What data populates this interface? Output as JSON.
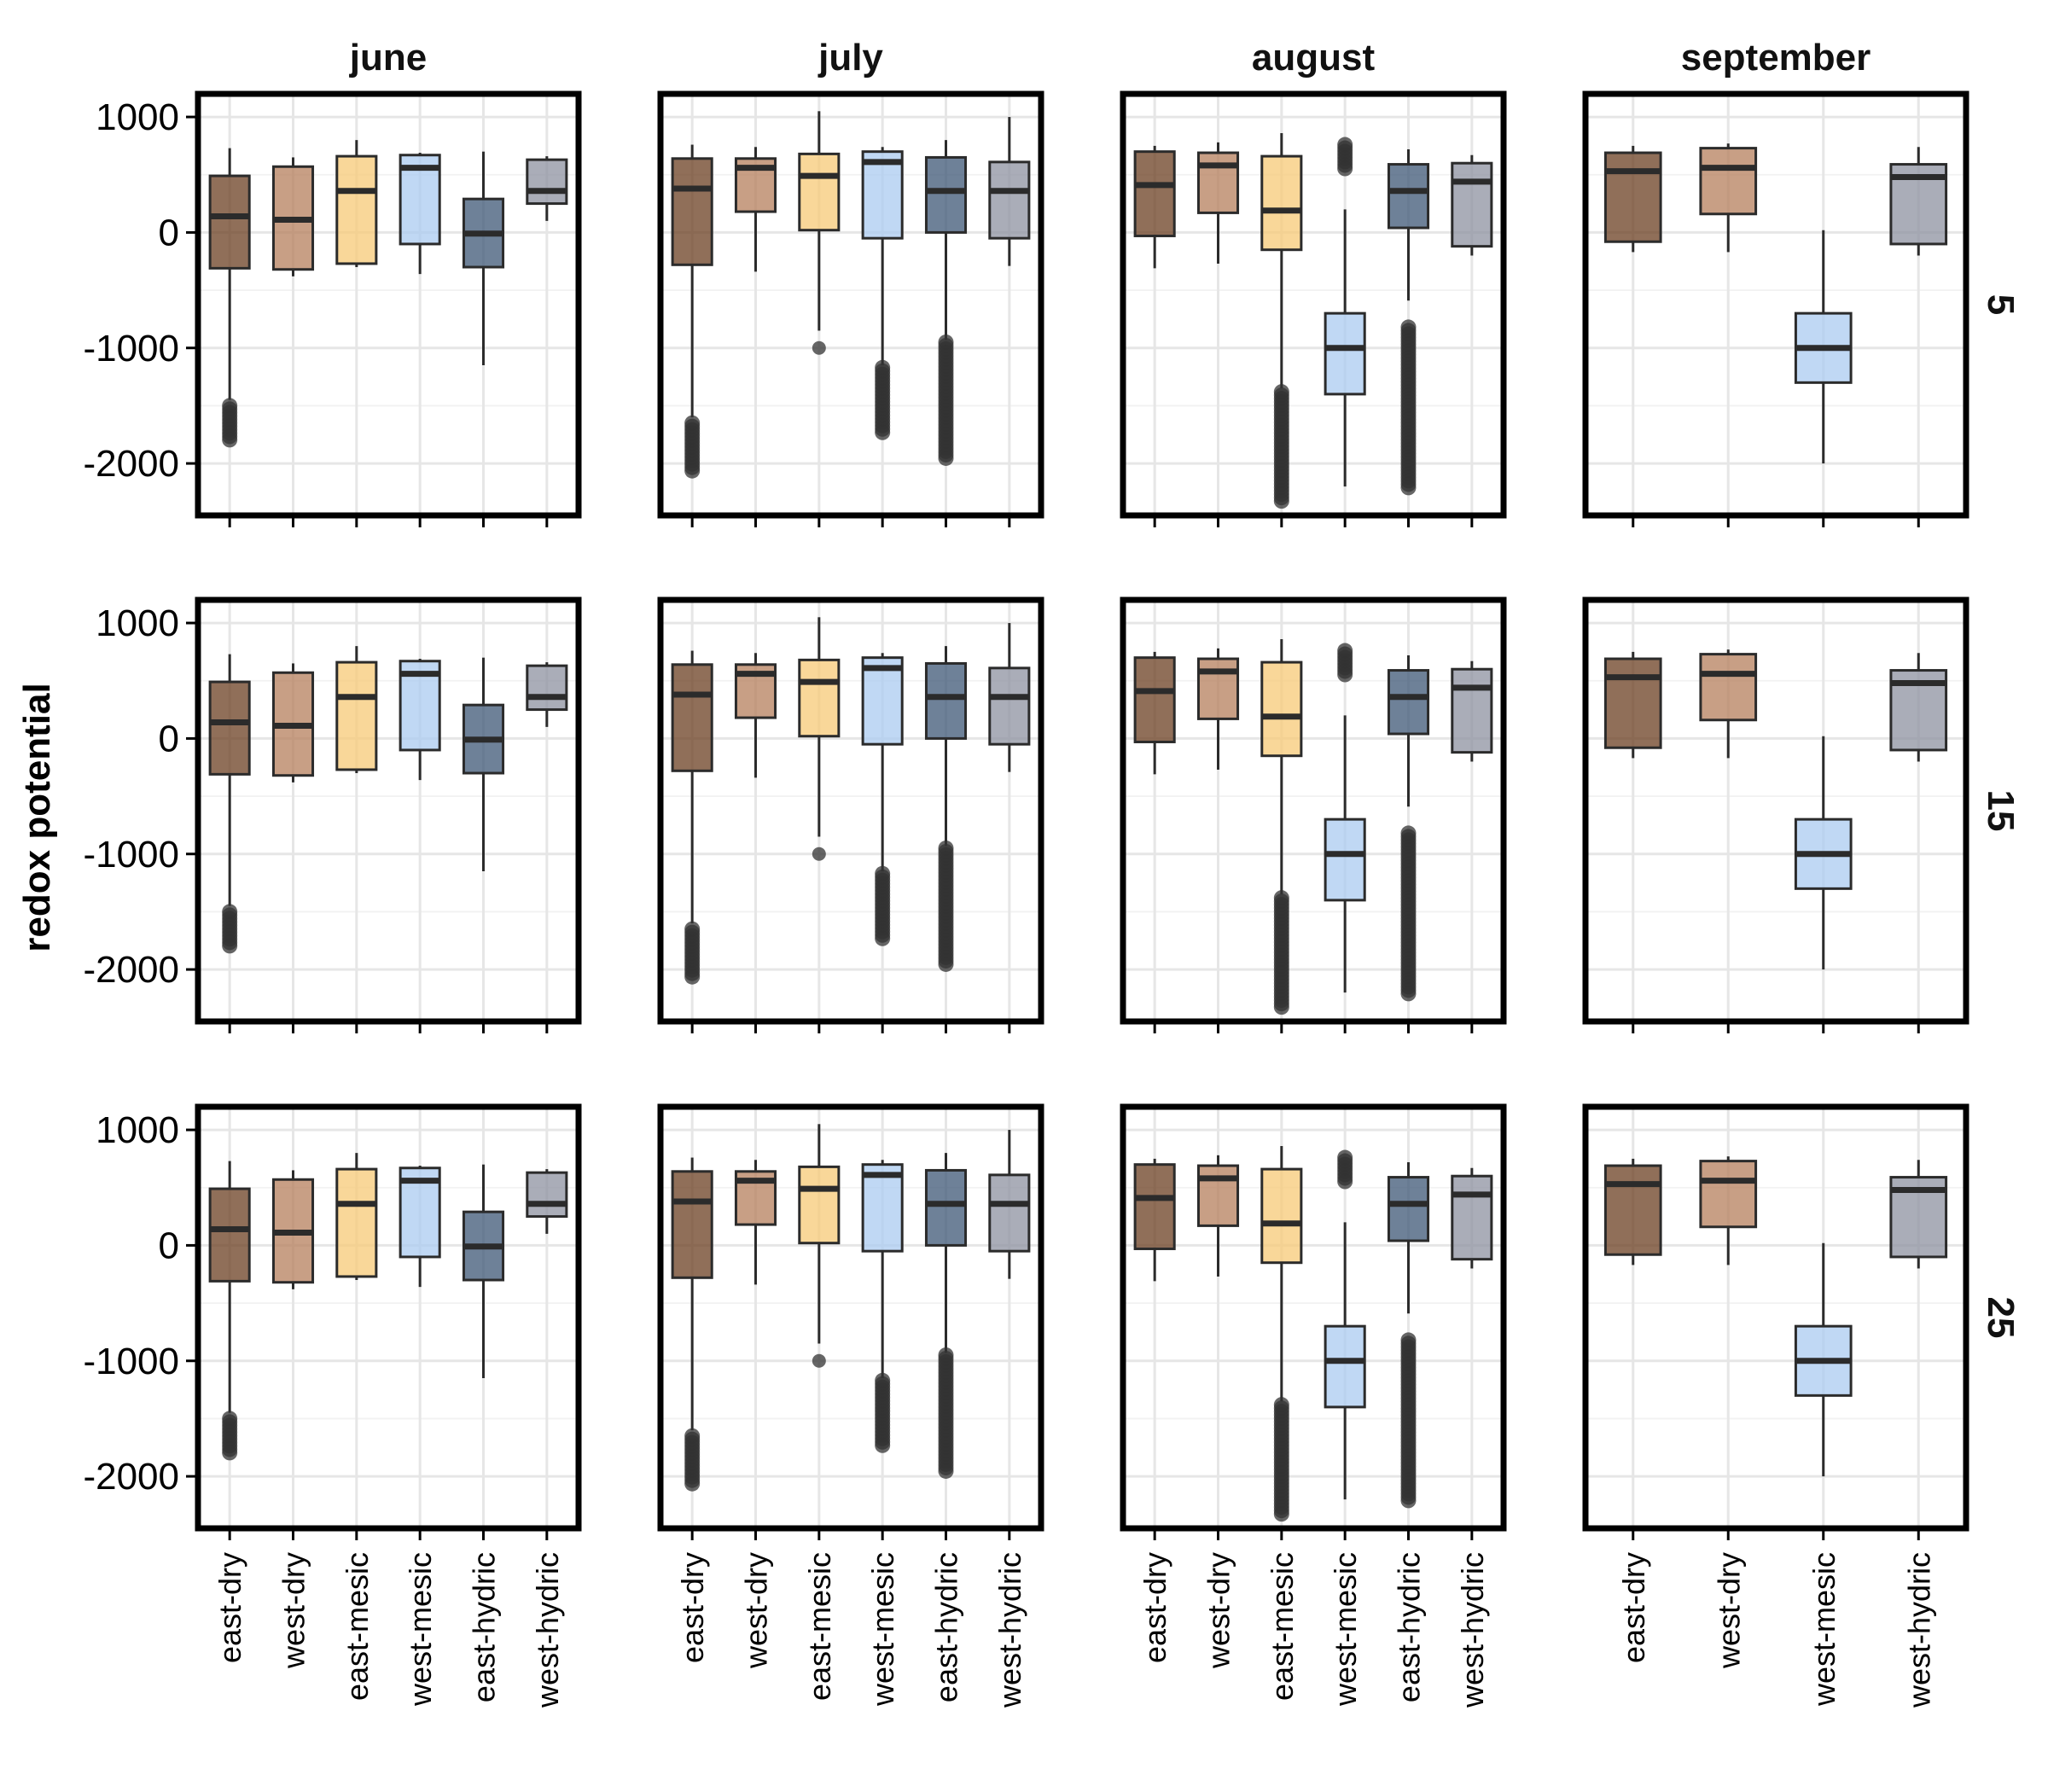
{
  "chart_data": {
    "type": "boxplot",
    "ylabel": "redox potential",
    "xlabel": "",
    "ylim": [
      -2450,
      1200
    ],
    "yticks": [
      1000,
      0,
      -1000,
      -2000
    ],
    "y_tick_labels": [
      "1000",
      "0",
      "-1000",
      "-2000"
    ],
    "grid": true,
    "colors": {
      "east-dry": "#6b3f22",
      "west-dry": "#b57f5c",
      "east-mesic": "#f7c977",
      "west-mesic": "#abcbf0",
      "east-hydric": "#3d5775",
      "west-hydric": "#8d92a0"
    },
    "facet_columns": [
      "june",
      "july",
      "august",
      "september"
    ],
    "facet_rows": [
      "5",
      "15",
      "25"
    ],
    "months": [
      {
        "name": "june",
        "categories": [
          "east-dry",
          "west-dry",
          "east-mesic",
          "west-mesic",
          "east-hydric",
          "west-hydric"
        ],
        "rows": [
          {
            "depth": "5",
            "boxes": [
              {
                "category": "east-dry",
                "whisker_low": -1450,
                "q1": -310,
                "median": 140,
                "q3": 490,
                "whisker_high": 730,
                "outliers_low": -1500,
                "outliers_high": -1800,
                "outliers_high_value": null
              },
              {
                "category": "west-dry",
                "whisker_low": -380,
                "q1": -320,
                "median": 110,
                "q3": 570,
                "whisker_high": 650
              },
              {
                "category": "east-mesic",
                "whisker_low": -300,
                "q1": -270,
                "median": 360,
                "q3": 660,
                "whisker_high": 800
              },
              {
                "category": "west-mesic",
                "whisker_low": -360,
                "q1": -100,
                "median": 560,
                "q3": 670,
                "whisker_high": 690
              },
              {
                "category": "east-hydric",
                "whisker_low": -1150,
                "q1": -300,
                "median": -10,
                "q3": 290,
                "whisker_high": 700
              },
              {
                "category": "west-hydric",
                "whisker_low": 100,
                "q1": 250,
                "median": 360,
                "q3": 630,
                "whisker_high": 660
              }
            ]
          },
          {
            "depth": "15",
            "boxes": [
              {
                "category": "east-dry",
                "whisker_low": -1450,
                "q1": -310,
                "median": 140,
                "q3": 490,
                "whisker_high": 730,
                "outliers_low": -1500,
                "outliers_high": -1800
              },
              {
                "category": "west-dry",
                "whisker_low": -380,
                "q1": -320,
                "median": 110,
                "q3": 570,
                "whisker_high": 650
              },
              {
                "category": "east-mesic",
                "whisker_low": -300,
                "q1": -270,
                "median": 360,
                "q3": 660,
                "whisker_high": 800
              },
              {
                "category": "west-mesic",
                "whisker_low": -360,
                "q1": -100,
                "median": 560,
                "q3": 670,
                "whisker_high": 690
              },
              {
                "category": "east-hydric",
                "whisker_low": -1150,
                "q1": -300,
                "median": -10,
                "q3": 290,
                "whisker_high": 700
              },
              {
                "category": "west-hydric",
                "whisker_low": 100,
                "q1": 250,
                "median": 360,
                "q3": 630,
                "whisker_high": 660
              }
            ]
          },
          {
            "depth": "25",
            "boxes": [
              {
                "category": "east-dry",
                "whisker_low": -1450,
                "q1": -310,
                "median": 140,
                "q3": 490,
                "whisker_high": 730,
                "outliers_low": -1500,
                "outliers_high": -1800
              },
              {
                "category": "west-dry",
                "whisker_low": -380,
                "q1": -320,
                "median": 110,
                "q3": 570,
                "whisker_high": 650
              },
              {
                "category": "east-mesic",
                "whisker_low": -300,
                "q1": -270,
                "median": 360,
                "q3": 660,
                "whisker_high": 800
              },
              {
                "category": "west-mesic",
                "whisker_low": -360,
                "q1": -100,
                "median": 560,
                "q3": 670,
                "whisker_high": 690
              },
              {
                "category": "east-hydric",
                "whisker_low": -1150,
                "q1": -300,
                "median": -10,
                "q3": 290,
                "whisker_high": 700
              },
              {
                "category": "west-hydric",
                "whisker_low": 100,
                "q1": 250,
                "median": 360,
                "q3": 630,
                "whisker_high": 660
              }
            ]
          }
        ]
      },
      {
        "name": "july",
        "categories": [
          "east-dry",
          "west-dry",
          "east-mesic",
          "west-mesic",
          "east-hydric",
          "west-hydric"
        ],
        "rows": [
          {
            "depth": "5",
            "boxes": [
              {
                "category": "east-dry",
                "whisker_low": -1600,
                "q1": -280,
                "median": 380,
                "q3": 640,
                "whisker_high": 760,
                "outliers_low": -1650,
                "outliers_high": -2080
              },
              {
                "category": "west-dry",
                "whisker_low": -340,
                "q1": 180,
                "median": 560,
                "q3": 640,
                "whisker_high": 740
              },
              {
                "category": "east-mesic",
                "whisker_low": -850,
                "q1": 20,
                "median": 490,
                "q3": 680,
                "whisker_high": 1050,
                "single_outlier": -1000
              },
              {
                "category": "west-mesic",
                "whisker_low": -1150,
                "q1": -50,
                "median": 610,
                "q3": 700,
                "whisker_high": 740,
                "outliers_low": -1170,
                "outliers_high": -1740
              },
              {
                "category": "east-hydric",
                "whisker_low": -930,
                "q1": 0,
                "median": 360,
                "q3": 650,
                "whisker_high": 800,
                "outliers_low": -950,
                "outliers_high": -1970
              },
              {
                "category": "west-hydric",
                "whisker_low": -290,
                "q1": -50,
                "median": 360,
                "q3": 610,
                "whisker_high": 1000
              }
            ]
          },
          {
            "depth": "15",
            "boxes": [
              {
                "category": "east-dry",
                "whisker_low": -1600,
                "q1": -280,
                "median": 380,
                "q3": 640,
                "whisker_high": 760,
                "outliers_low": -1650,
                "outliers_high": -2080
              },
              {
                "category": "west-dry",
                "whisker_low": -340,
                "q1": 180,
                "median": 560,
                "q3": 640,
                "whisker_high": 740
              },
              {
                "category": "east-mesic",
                "whisker_low": -850,
                "q1": 20,
                "median": 490,
                "q3": 680,
                "whisker_high": 1050,
                "single_outlier": -1000
              },
              {
                "category": "west-mesic",
                "whisker_low": -1150,
                "q1": -50,
                "median": 610,
                "q3": 700,
                "whisker_high": 740,
                "outliers_low": -1170,
                "outliers_high": -1740
              },
              {
                "category": "east-hydric",
                "whisker_low": -930,
                "q1": 0,
                "median": 360,
                "q3": 650,
                "whisker_high": 800,
                "outliers_low": -950,
                "outliers_high": -1970
              },
              {
                "category": "west-hydric",
                "whisker_low": -290,
                "q1": -50,
                "median": 360,
                "q3": 610,
                "whisker_high": 1000
              }
            ]
          },
          {
            "depth": "25",
            "boxes": [
              {
                "category": "east-dry",
                "whisker_low": -1600,
                "q1": -280,
                "median": 380,
                "q3": 640,
                "whisker_high": 760,
                "outliers_low": -1650,
                "outliers_high": -2080
              },
              {
                "category": "west-dry",
                "whisker_low": -340,
                "q1": 180,
                "median": 560,
                "q3": 640,
                "whisker_high": 740
              },
              {
                "category": "east-mesic",
                "whisker_low": -850,
                "q1": 20,
                "median": 490,
                "q3": 680,
                "whisker_high": 1050,
                "single_outlier": -1000
              },
              {
                "category": "west-mesic",
                "whisker_low": -1150,
                "q1": -50,
                "median": 610,
                "q3": 700,
                "whisker_high": 740,
                "outliers_low": -1170,
                "outliers_high": -1740
              },
              {
                "category": "east-hydric",
                "whisker_low": -930,
                "q1": 0,
                "median": 360,
                "q3": 650,
                "whisker_high": 800,
                "outliers_low": -950,
                "outliers_high": -1970
              },
              {
                "category": "west-hydric",
                "whisker_low": -290,
                "q1": -50,
                "median": 360,
                "q3": 610,
                "whisker_high": 1000
              }
            ]
          }
        ]
      },
      {
        "name": "august",
        "categories": [
          "east-dry",
          "west-dry",
          "east-mesic",
          "west-mesic",
          "east-hydric",
          "west-hydric"
        ],
        "rows": [
          {
            "depth": "5",
            "boxes": [
              {
                "category": "east-dry",
                "whisker_low": -310,
                "q1": -30,
                "median": 410,
                "q3": 700,
                "whisker_high": 750
              },
              {
                "category": "west-dry",
                "whisker_low": -270,
                "q1": 170,
                "median": 580,
                "q3": 690,
                "whisker_high": 780
              },
              {
                "category": "east-mesic",
                "whisker_low": -1350,
                "q1": -150,
                "median": 190,
                "q3": 660,
                "whisker_high": 860,
                "outliers_low": -1380,
                "outliers_high": -2330
              },
              {
                "category": "west-mesic",
                "whisker_low": -2200,
                "q1": -1400,
                "median": -1000,
                "q3": -700,
                "whisker_high": 200,
                "outliers_low": 540,
                "outliers_high": 760
              },
              {
                "category": "east-hydric",
                "whisker_low": -590,
                "q1": 40,
                "median": 360,
                "q3": 590,
                "whisker_high": 720,
                "outliers_low": -820,
                "outliers_high": -2220
              },
              {
                "category": "west-hydric",
                "whisker_low": -200,
                "q1": -120,
                "median": 440,
                "q3": 600,
                "whisker_high": 670
              }
            ]
          },
          {
            "depth": "15",
            "boxes": [
              {
                "category": "east-dry",
                "whisker_low": -310,
                "q1": -30,
                "median": 410,
                "q3": 700,
                "whisker_high": 750
              },
              {
                "category": "west-dry",
                "whisker_low": -270,
                "q1": 170,
                "median": 580,
                "q3": 690,
                "whisker_high": 780
              },
              {
                "category": "east-mesic",
                "whisker_low": -1350,
                "q1": -150,
                "median": 190,
                "q3": 660,
                "whisker_high": 860,
                "outliers_low": -1380,
                "outliers_high": -2330
              },
              {
                "category": "west-mesic",
                "whisker_low": -2200,
                "q1": -1400,
                "median": -1000,
                "q3": -700,
                "whisker_high": 200,
                "outliers_low": 540,
                "outliers_high": 760
              },
              {
                "category": "east-hydric",
                "whisker_low": -590,
                "q1": 40,
                "median": 360,
                "q3": 590,
                "whisker_high": 720,
                "outliers_low": -820,
                "outliers_high": -2220
              },
              {
                "category": "west-hydric",
                "whisker_low": -200,
                "q1": -120,
                "median": 440,
                "q3": 600,
                "whisker_high": 670
              }
            ]
          },
          {
            "depth": "25",
            "boxes": [
              {
                "category": "east-dry",
                "whisker_low": -310,
                "q1": -30,
                "median": 410,
                "q3": 700,
                "whisker_high": 750
              },
              {
                "category": "west-dry",
                "whisker_low": -270,
                "q1": 170,
                "median": 580,
                "q3": 690,
                "whisker_high": 780
              },
              {
                "category": "east-mesic",
                "whisker_low": -1350,
                "q1": -150,
                "median": 190,
                "q3": 660,
                "whisker_high": 860,
                "outliers_low": -1380,
                "outliers_high": -2330
              },
              {
                "category": "west-mesic",
                "whisker_low": -2200,
                "q1": -1400,
                "median": -1000,
                "q3": -700,
                "whisker_high": 200,
                "outliers_low": 540,
                "outliers_high": 760
              },
              {
                "category": "east-hydric",
                "whisker_low": -590,
                "q1": 40,
                "median": 360,
                "q3": 590,
                "whisker_high": 720,
                "outliers_low": -820,
                "outliers_high": -2220
              },
              {
                "category": "west-hydric",
                "whisker_low": -200,
                "q1": -120,
                "median": 440,
                "q3": 600,
                "whisker_high": 670
              }
            ]
          }
        ]
      },
      {
        "name": "september",
        "categories": [
          "east-dry",
          "west-dry",
          "west-mesic",
          "west-hydric"
        ],
        "rows": [
          {
            "depth": "5",
            "boxes": [
              {
                "category": "east-dry",
                "whisker_low": -170,
                "q1": -80,
                "median": 530,
                "q3": 690,
                "whisker_high": 750
              },
              {
                "category": "west-dry",
                "whisker_low": -170,
                "q1": 160,
                "median": 560,
                "q3": 730,
                "whisker_high": 770
              },
              {
                "category": "west-mesic",
                "whisker_low": -2000,
                "q1": -1300,
                "median": -1000,
                "q3": -700,
                "whisker_high": 20
              },
              {
                "category": "west-hydric",
                "whisker_low": -200,
                "q1": -100,
                "median": 480,
                "q3": 590,
                "whisker_high": 740
              }
            ]
          },
          {
            "depth": "15",
            "boxes": [
              {
                "category": "east-dry",
                "whisker_low": -170,
                "q1": -80,
                "median": 530,
                "q3": 690,
                "whisker_high": 750
              },
              {
                "category": "west-dry",
                "whisker_low": -170,
                "q1": 160,
                "median": 560,
                "q3": 730,
                "whisker_high": 770
              },
              {
                "category": "west-mesic",
                "whisker_low": -2000,
                "q1": -1300,
                "median": -1000,
                "q3": -700,
                "whisker_high": 20
              },
              {
                "category": "west-hydric",
                "whisker_low": -200,
                "q1": -100,
                "median": 480,
                "q3": 590,
                "whisker_high": 740
              }
            ]
          },
          {
            "depth": "25",
            "boxes": [
              {
                "category": "east-dry",
                "whisker_low": -170,
                "q1": -80,
                "median": 530,
                "q3": 690,
                "whisker_high": 750
              },
              {
                "category": "west-dry",
                "whisker_low": -170,
                "q1": 160,
                "median": 560,
                "q3": 730,
                "whisker_high": 770
              },
              {
                "category": "west-mesic",
                "whisker_low": -2000,
                "q1": -1300,
                "median": -1000,
                "q3": -700,
                "whisker_high": 20
              },
              {
                "category": "west-hydric",
                "whisker_low": -200,
                "q1": -100,
                "median": 480,
                "q3": 590,
                "whisker_high": 740
              }
            ]
          }
        ]
      }
    ]
  }
}
